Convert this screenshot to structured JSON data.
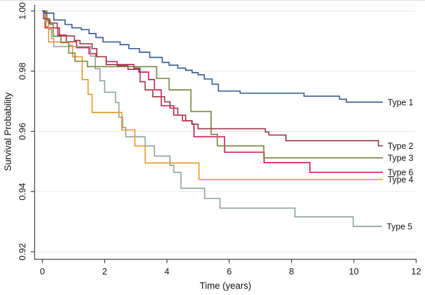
{
  "figure": {
    "background": "#ffffff",
    "top_border_color": "#d9dee2"
  },
  "chart_data": {
    "type": "line",
    "style": "kaplan-meier-step",
    "title": "",
    "xlabel": "Time (years)",
    "ylabel": "Survival Probability",
    "xlim": [
      0,
      12
    ],
    "ylim": [
      0.92,
      1.0
    ],
    "grid": "horizontal",
    "gridline_color": "#e1e9f1",
    "plot_top_line_color": "#eef2f6",
    "axis_color": "#404040",
    "text_color": "#141414",
    "legend_position": "line-end-labels-right",
    "xticks": [
      {
        "v": 0,
        "label": "0"
      },
      {
        "v": 2,
        "label": "2"
      },
      {
        "v": 4,
        "label": "4"
      },
      {
        "v": 6,
        "label": "6"
      },
      {
        "v": 8,
        "label": "8"
      },
      {
        "v": 10,
        "label": "10"
      },
      {
        "v": 12,
        "label": "12"
      }
    ],
    "yticks": [
      {
        "v": 1.0,
        "label": "1.00"
      },
      {
        "v": 0.98,
        "label": "0.98"
      },
      {
        "v": 0.96,
        "label": "0.96"
      },
      {
        "v": 0.94,
        "label": "0.94"
      },
      {
        "v": 0.92,
        "label": "0.92"
      }
    ],
    "series": [
      {
        "name": "Type 1",
        "color": "#3d5f94",
        "end": 10.93,
        "points": [
          [
            0,
            1
          ],
          [
            0.08,
            0.9993
          ],
          [
            0.37,
            0.997
          ],
          [
            0.73,
            0.9955
          ],
          [
            0.95,
            0.9944
          ],
          [
            1.25,
            0.9938
          ],
          [
            1.5,
            0.9925
          ],
          [
            1.72,
            0.9912
          ],
          [
            1.95,
            0.9897
          ],
          [
            2.5,
            0.9888
          ],
          [
            2.78,
            0.9875
          ],
          [
            3.12,
            0.9863
          ],
          [
            3.45,
            0.9846
          ],
          [
            3.85,
            0.9829
          ],
          [
            4.07,
            0.982
          ],
          [
            4.35,
            0.981
          ],
          [
            4.6,
            0.9803
          ],
          [
            4.81,
            0.9795
          ],
          [
            5.0,
            0.9788
          ],
          [
            5.2,
            0.9774
          ],
          [
            5.45,
            0.9757
          ],
          [
            5.65,
            0.9734
          ],
          [
            6.35,
            0.9727
          ],
          [
            8.4,
            0.9717
          ],
          [
            9.54,
            0.9707
          ],
          [
            9.76,
            0.9697
          ]
        ]
      },
      {
        "name": "Type 2",
        "color": "#a23c4c",
        "end": 10.93,
        "points": [
          [
            0,
            1
          ],
          [
            0.04,
            0.9974
          ],
          [
            0.22,
            0.996
          ],
          [
            0.48,
            0.9944
          ],
          [
            0.55,
            0.9917
          ],
          [
            1.03,
            0.9902
          ],
          [
            1.21,
            0.9891
          ],
          [
            1.6,
            0.9875
          ],
          [
            1.75,
            0.9848
          ],
          [
            2.05,
            0.9822
          ],
          [
            2.94,
            0.981
          ],
          [
            3.14,
            0.9765
          ],
          [
            3.3,
            0.9738
          ],
          [
            3.55,
            0.9715
          ],
          [
            3.93,
            0.9698
          ],
          [
            4.1,
            0.9677
          ],
          [
            4.35,
            0.9654
          ],
          [
            4.6,
            0.9635
          ],
          [
            4.81,
            0.9624
          ],
          [
            5.0,
            0.9609
          ],
          [
            7.16,
            0.9598
          ],
          [
            7.27,
            0.9588
          ],
          [
            7.82,
            0.9569
          ],
          [
            10.79,
            0.9552
          ]
        ]
      },
      {
        "name": "Type 3",
        "color": "#79883e",
        "end": 10.93,
        "points": [
          [
            0,
            1
          ],
          [
            0.15,
            0.997
          ],
          [
            0.25,
            0.9955
          ],
          [
            0.35,
            0.9916
          ],
          [
            0.6,
            0.9895
          ],
          [
            0.85,
            0.986
          ],
          [
            1.05,
            0.9833
          ],
          [
            1.45,
            0.9815
          ],
          [
            3.67,
            0.9776
          ],
          [
            4.07,
            0.9738
          ],
          [
            4.77,
            0.9666
          ],
          [
            5.42,
            0.959
          ],
          [
            5.62,
            0.9552
          ],
          [
            7.11,
            0.9512
          ]
        ]
      },
      {
        "name": "Type 4",
        "color": "#e9992f",
        "end": 10.93,
        "points": [
          [
            0,
            1
          ],
          [
            0.12,
            0.9948
          ],
          [
            0.2,
            0.9897
          ],
          [
            0.85,
            0.9886
          ],
          [
            0.97,
            0.9848
          ],
          [
            1.28,
            0.9772
          ],
          [
            1.47,
            0.9723
          ],
          [
            1.6,
            0.9663
          ],
          [
            2.55,
            0.9605
          ],
          [
            2.97,
            0.9552
          ],
          [
            3.3,
            0.9495
          ],
          [
            5.03,
            0.944
          ]
        ]
      },
      {
        "name": "Type 5",
        "color": "#90a698",
        "end": 10.9,
        "points": [
          [
            0,
            1
          ],
          [
            0.1,
            0.9965
          ],
          [
            0.2,
            0.9938
          ],
          [
            0.3,
            0.9908
          ],
          [
            0.37,
            0.9882
          ],
          [
            1.55,
            0.985
          ],
          [
            1.7,
            0.9808
          ],
          [
            1.85,
            0.9768
          ],
          [
            2.0,
            0.973
          ],
          [
            2.35,
            0.9696
          ],
          [
            2.46,
            0.9647
          ],
          [
            2.58,
            0.9613
          ],
          [
            2.68,
            0.9582
          ],
          [
            3.3,
            0.9552
          ],
          [
            3.6,
            0.9518
          ],
          [
            4.1,
            0.9487
          ],
          [
            4.22,
            0.9464
          ],
          [
            4.45,
            0.9411
          ],
          [
            5.21,
            0.9377
          ],
          [
            5.7,
            0.9345
          ],
          [
            8.11,
            0.9316
          ],
          [
            9.98,
            0.9284
          ]
        ]
      },
      {
        "name": "Type 6",
        "color": "#ce2150",
        "end": 10.93,
        "points": [
          [
            0,
            1
          ],
          [
            0.09,
            0.9944
          ],
          [
            0.5,
            0.992
          ],
          [
            0.77,
            0.9898
          ],
          [
            1.1,
            0.9878
          ],
          [
            1.5,
            0.9858
          ],
          [
            1.72,
            0.9848
          ],
          [
            2.05,
            0.9832
          ],
          [
            2.4,
            0.9818
          ],
          [
            2.75,
            0.9806
          ],
          [
            3.1,
            0.9797
          ],
          [
            3.41,
            0.9772
          ],
          [
            3.6,
            0.9738
          ],
          [
            3.82,
            0.9685
          ],
          [
            4.22,
            0.9654
          ],
          [
            4.5,
            0.9635
          ],
          [
            4.8,
            0.9624
          ],
          [
            4.87,
            0.9582
          ],
          [
            5.85,
            0.9531
          ],
          [
            7.12,
            0.9496
          ],
          [
            8.59,
            0.9464
          ]
        ]
      }
    ]
  }
}
